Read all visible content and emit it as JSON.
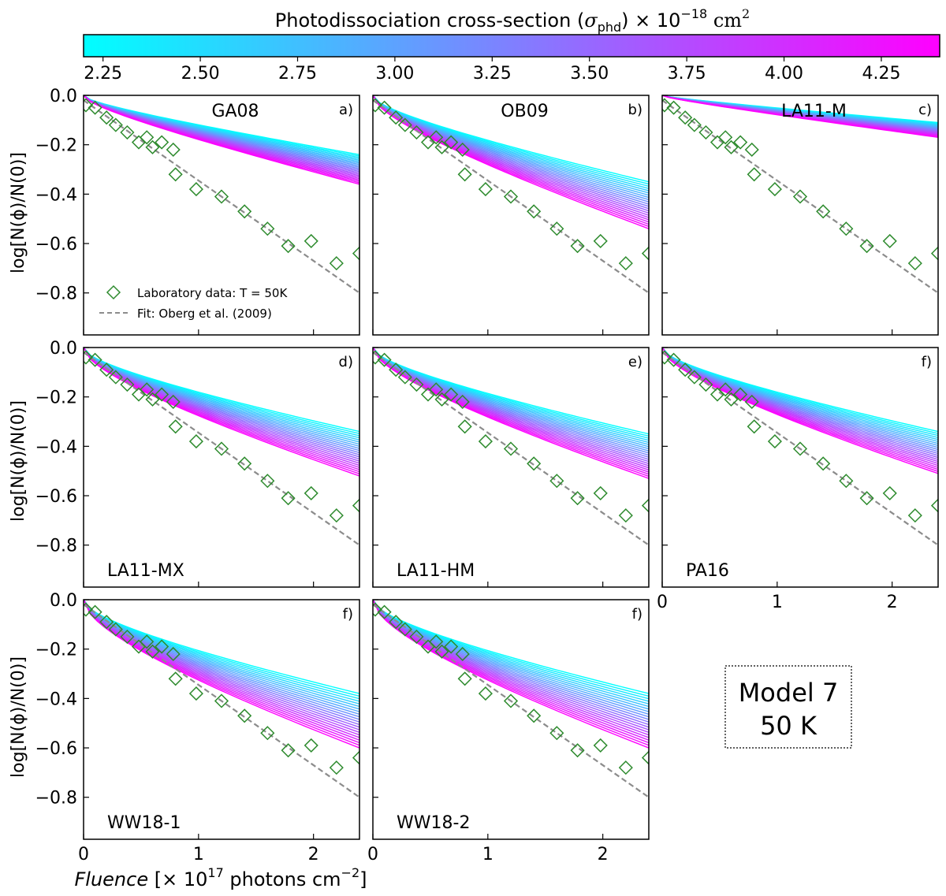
{
  "colorbar": {
    "title_main": "Photodissociation cross-section (",
    "title_sigma": "σ",
    "title_sub": "phd",
    "title_times": ") × 10",
    "title_exp": "−18",
    "title_unit": " cm",
    "title_unit_exp": "2",
    "ticks": [
      {
        "value": 2.25,
        "label": "2.25"
      },
      {
        "value": 2.5,
        "label": "2.50"
      },
      {
        "value": 2.75,
        "label": "2.75"
      },
      {
        "value": 3.0,
        "label": "3.00"
      },
      {
        "value": 3.25,
        "label": "3.25"
      },
      {
        "value": 3.5,
        "label": "3.50"
      },
      {
        "value": 3.75,
        "label": "3.75"
      },
      {
        "value": 4.0,
        "label": "4.00"
      },
      {
        "value": 4.25,
        "label": "4.25"
      }
    ],
    "range": [
      2.2,
      4.4
    ],
    "color_low": "#00ffff",
    "color_high": "#ff00ff"
  },
  "axes": {
    "ylabel": "log[N(ϕ)/N(0)]",
    "xlabel_italic": "Fluence",
    "xlabel_rest": " [× 10",
    "xlabel_exp": "17",
    "xlabel_unit": " photons cm",
    "xlabel_unit_exp": "−2",
    "xlabel_close": "]",
    "xlim": [
      0,
      2.4
    ],
    "ylim": [
      -0.97,
      0
    ],
    "xticks": [
      {
        "value": 0,
        "label": "0"
      },
      {
        "value": 1,
        "label": "1"
      },
      {
        "value": 2,
        "label": "2"
      }
    ],
    "yticks": [
      {
        "value": 0.0,
        "label": "0.0"
      },
      {
        "value": -0.2,
        "label": "−0.2"
      },
      {
        "value": -0.4,
        "label": "−0.4"
      },
      {
        "value": -0.6,
        "label": "−0.6"
      },
      {
        "value": -0.8,
        "label": "−0.8"
      }
    ]
  },
  "legend": {
    "lab_label": "Laboratory data: T = 50K",
    "fit_label": "Fit: Oberg et al. (2009)"
  },
  "annotation": {
    "line1": "Model 7",
    "line2": "50 K"
  },
  "colors": {
    "lab_marker": "#2e8b2e",
    "fit_line": "#8c8c8c"
  },
  "chart_data": {
    "type": "line",
    "x_units": "10^17 photons cm^-2",
    "lab_data": {
      "name": "Laboratory data: T = 50K",
      "x": [
        0.02,
        0.1,
        0.2,
        0.28,
        0.38,
        0.48,
        0.55,
        0.6,
        0.68,
        0.78,
        0.8,
        0.98,
        1.2,
        1.4,
        1.6,
        1.78,
        1.98,
        2.2,
        2.4
      ],
      "y": [
        -0.04,
        -0.05,
        -0.09,
        -0.12,
        -0.15,
        -0.19,
        -0.17,
        -0.21,
        -0.19,
        -0.22,
        -0.32,
        -0.38,
        -0.41,
        -0.47,
        -0.54,
        -0.61,
        -0.59,
        -0.68,
        -0.64
      ]
    },
    "fit": {
      "name": "Fit: Oberg et al. (2009)",
      "x": [
        0,
        2.4
      ],
      "y": [
        -0.02,
        -0.8
      ]
    },
    "sigma_range": [
      2.2,
      4.4
    ],
    "panels": [
      {
        "label": "GA08",
        "letter": "a)",
        "label_pos": "top",
        "end_low": -0.24,
        "end_high": -0.36,
        "curve": 0.35
      },
      {
        "label": "OB09",
        "letter": "b)",
        "label_pos": "top",
        "end_low": -0.35,
        "end_high": -0.54,
        "curve": 0.45
      },
      {
        "label": "LA11-M",
        "letter": "c)",
        "label_pos": "top",
        "end_low": -0.11,
        "end_high": -0.17,
        "curve": 0.2
      },
      {
        "label": "LA11-MX",
        "letter": "d)",
        "label_pos": "bottom",
        "end_low": -0.34,
        "end_high": -0.52,
        "curve": 0.5
      },
      {
        "label": "LA11-HM",
        "letter": "e)",
        "label_pos": "bottom",
        "end_low": -0.35,
        "end_high": -0.53,
        "curve": 0.5
      },
      {
        "label": "PA16",
        "letter": "f)",
        "label_pos": "bottom",
        "end_low": -0.34,
        "end_high": -0.51,
        "curve": 0.5
      },
      {
        "label": "WW18-1",
        "letter": "f)",
        "label_pos": "bottom",
        "end_low": -0.38,
        "end_high": -0.6,
        "curve": 0.55
      },
      {
        "label": "WW18-2",
        "letter": "f)",
        "label_pos": "bottom",
        "end_low": -0.38,
        "end_high": -0.6,
        "curve": 0.55
      }
    ]
  }
}
